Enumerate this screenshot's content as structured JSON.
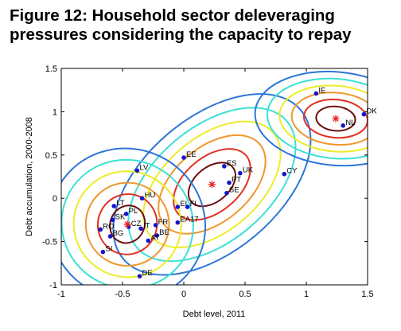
{
  "figure": {
    "title_line1": "Figure 12: Household sector deleveraging",
    "title_line2": "pressures considering the capacity to repay"
  },
  "chart_data": {
    "type": "scatter",
    "title": "",
    "xlabel": "Debt level, 2011",
    "ylabel": "Debt accumulation, 2000-2008",
    "xlim": [
      -1,
      1.5
    ],
    "ylim": [
      -1,
      1.5
    ],
    "xticks": [
      -1,
      -0.5,
      0,
      0.5,
      1,
      1.5
    ],
    "xtick_labels": [
      "-1",
      "-0.5",
      "0",
      "0.5",
      "1",
      "1.5"
    ],
    "yticks": [
      -1,
      -0.5,
      0,
      0.5,
      1,
      1.5
    ],
    "ytick_labels": [
      "-1",
      "-0.5",
      "0",
      "0.5",
      "1",
      "1.5"
    ],
    "grid": false,
    "points": [
      {
        "label": "IE",
        "x": 1.08,
        "y": 1.21
      },
      {
        "label": "DK",
        "x": 1.47,
        "y": 0.97
      },
      {
        "label": "NL",
        "x": 1.3,
        "y": 0.84
      },
      {
        "label": "EE",
        "x": 0.0,
        "y": 0.47
      },
      {
        "label": "LV",
        "x": -0.38,
        "y": 0.32
      },
      {
        "label": "ES",
        "x": 0.33,
        "y": 0.37
      },
      {
        "label": "UK",
        "x": 0.46,
        "y": 0.29
      },
      {
        "label": "PT",
        "x": 0.37,
        "y": 0.18
      },
      {
        "label": "SE",
        "x": 0.35,
        "y": 0.06
      },
      {
        "label": "CY",
        "x": 0.82,
        "y": 0.28
      },
      {
        "label": "HU",
        "x": -0.34,
        "y": 0.0
      },
      {
        "label": "LT",
        "x": -0.57,
        "y": -0.09
      },
      {
        "label": "PL",
        "x": -0.47,
        "y": -0.18
      },
      {
        "label": "SK",
        "x": -0.58,
        "y": -0.25
      },
      {
        "label": "RO",
        "x": -0.68,
        "y": -0.36
      },
      {
        "label": "CZ",
        "x": -0.45,
        "y": -0.33
      },
      {
        "label": "IT",
        "x": -0.35,
        "y": -0.35
      },
      {
        "label": "FR",
        "x": -0.23,
        "y": -0.31
      },
      {
        "label": "BG",
        "x": -0.6,
        "y": -0.44
      },
      {
        "label": "BE",
        "x": -0.22,
        "y": -0.43
      },
      {
        "label": "AT",
        "x": -0.29,
        "y": -0.49
      },
      {
        "label": "SI",
        "x": -0.66,
        "y": -0.62
      },
      {
        "label": "DE",
        "x": -0.36,
        "y": -0.9
      },
      {
        "label": "EL",
        "x": -0.05,
        "y": -0.1
      },
      {
        "label": "FI",
        "x": 0.03,
        "y": -0.1
      },
      {
        "label": "EA17",
        "x": -0.05,
        "y": -0.28
      }
    ],
    "centroids": [
      {
        "x": -0.46,
        "y": -0.3
      },
      {
        "x": 0.23,
        "y": 0.16
      },
      {
        "x": 1.24,
        "y": 0.92
      }
    ],
    "colors": {
      "points": "#1515cc",
      "centroid": "#e8221f",
      "contours": [
        "#6d0f0f",
        "#e03020",
        "#f0962c",
        "#ecec2a",
        "#3ce0d6",
        "#2d75d6"
      ]
    }
  }
}
